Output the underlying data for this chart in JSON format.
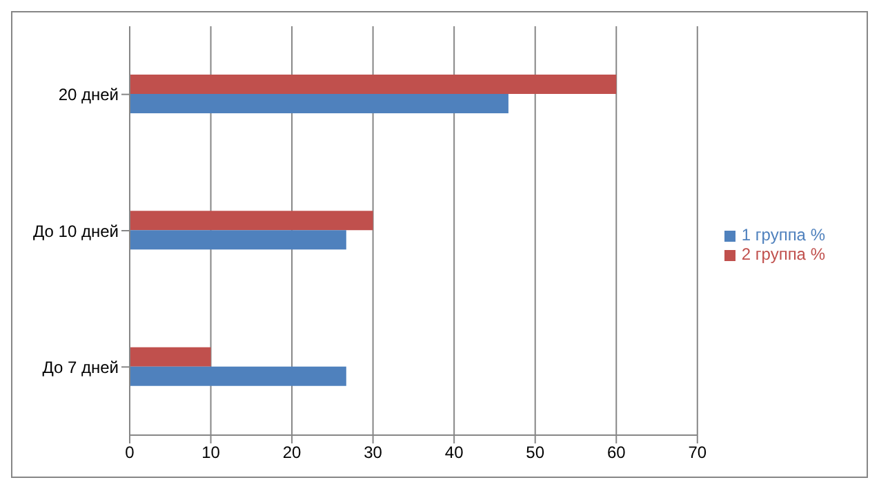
{
  "chart_data": {
    "type": "bar",
    "orientation": "horizontal",
    "categories": [
      "20 дней",
      "До 10 дней",
      "До 7 дней"
    ],
    "series": [
      {
        "name": "2 группа %",
        "color": "#c0504d",
        "values": [
          60,
          30,
          10
        ]
      },
      {
        "name": "1 группа %",
        "color": "#4f81bd",
        "values": [
          46.7,
          26.7,
          26.7
        ]
      }
    ],
    "xlim": [
      0,
      70
    ],
    "xticks": [
      0,
      10,
      20,
      30,
      40,
      50,
      60,
      70
    ],
    "grid": "x",
    "legend": "right"
  }
}
